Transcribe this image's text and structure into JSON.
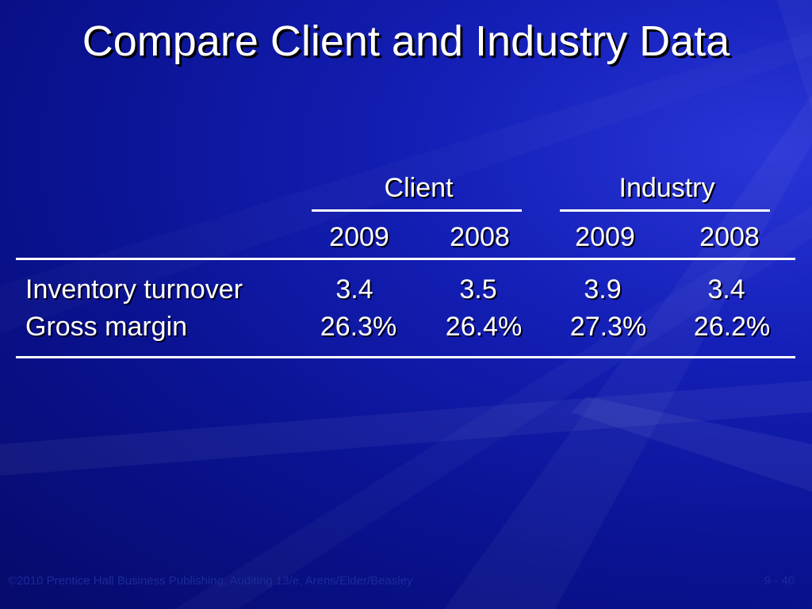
{
  "slide": {
    "title": "Compare Client and Industry Data",
    "background_color": "#0a1290"
  },
  "table": {
    "group_headers": [
      "Client",
      "Industry"
    ],
    "year_headers": [
      "2009",
      "2008",
      "2009",
      "2008"
    ],
    "rows": [
      {
        "label": "Inventory turnover",
        "values": [
          "3.4",
          "3.5",
          "3.9",
          "3.4"
        ]
      },
      {
        "label": "Gross margin",
        "values": [
          "26.3%",
          "26.4%",
          "27.3%",
          "26.2%"
        ]
      }
    ]
  },
  "footer": {
    "left": "©2010 Prentice Hall Business Publishing, Auditing 13/e, Arens/Elder/Beasley",
    "right": "9 - 40"
  }
}
